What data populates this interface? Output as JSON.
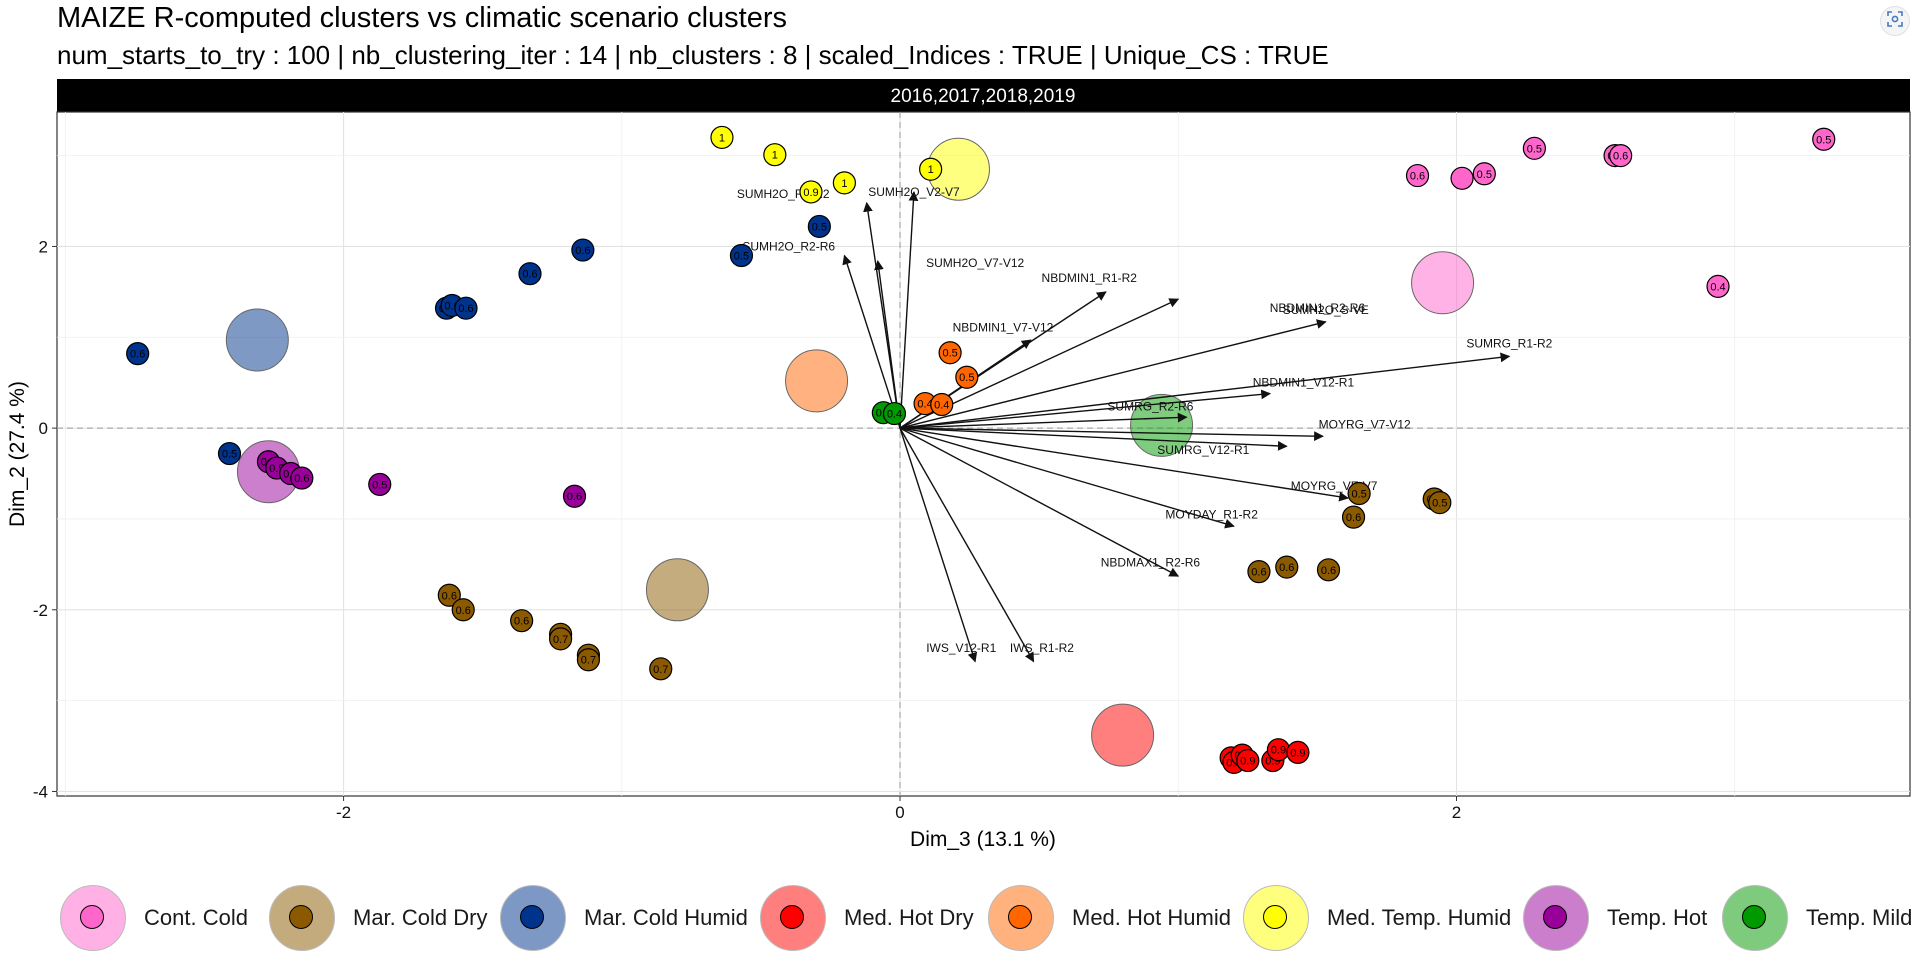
{
  "page": {
    "title": "MAIZE R-computed clusters vs climatic scenario clusters",
    "subtitle": "num_starts_to_try : 100 | nb_clustering_iter : 14 | nb_clusters : 8 | scaled_Indices : TRUE | Unique_CS : TRUE",
    "corner_icon": "screenshot-capture-icon"
  },
  "chart_data": {
    "type": "scatter",
    "facet_label": "2016,2017,2018,2019",
    "xlabel": "Dim_3 (13.1 %)",
    "ylabel": "Dim_2 (27.4 %)",
    "xlim": [
      -3.03,
      3.63
    ],
    "ylim": [
      -4.05,
      3.48
    ],
    "x_ticks": [
      -2,
      0,
      2
    ],
    "y_ticks": [
      -4,
      -2,
      0,
      2
    ],
    "grid": true,
    "legend_position": "bottom",
    "clusters": [
      {
        "name": "Cont. Cold",
        "color": "#ff66cc",
        "centroid": [
          1.95,
          1.6
        ]
      },
      {
        "name": "Mar. Cold Dry",
        "color": "#8b5a00",
        "centroid": [
          -0.8,
          -1.78
        ]
      },
      {
        "name": "Mar. Cold Humid",
        "color": "#00338c",
        "centroid": [
          -2.31,
          0.97
        ]
      },
      {
        "name": "Med. Hot Dry",
        "color": "#ff0000",
        "centroid": [
          0.8,
          -3.38
        ]
      },
      {
        "name": "Med. Hot Humid",
        "color": "#ff6600",
        "centroid": [
          -0.3,
          0.52
        ]
      },
      {
        "name": "Med. Temp. Humid",
        "color": "#ffff00",
        "centroid": [
          0.21,
          2.85
        ]
      },
      {
        "name": "Temp. Hot",
        "color": "#990099",
        "centroid": [
          -2.27,
          -0.48
        ]
      },
      {
        "name": "Temp. Mild",
        "color": "#009900",
        "centroid": [
          0.94,
          0.03
        ]
      }
    ],
    "points": [
      {
        "cluster": 0,
        "x": 1.86,
        "y": 2.78,
        "label": "0.6"
      },
      {
        "cluster": 0,
        "x": 2.02,
        "y": 2.75,
        "label": ""
      },
      {
        "cluster": 0,
        "x": 2.1,
        "y": 2.8,
        "label": "0.5"
      },
      {
        "cluster": 0,
        "x": 2.28,
        "y": 3.08,
        "label": "0.5"
      },
      {
        "cluster": 0,
        "x": 2.57,
        "y": 3.0,
        "label": "0.6"
      },
      {
        "cluster": 0,
        "x": 2.59,
        "y": 3.0,
        "label": "0.6"
      },
      {
        "cluster": 0,
        "x": 3.32,
        "y": 3.18,
        "label": "0.5"
      },
      {
        "cluster": 0,
        "x": 2.94,
        "y": 1.56,
        "label": "0.4"
      },
      {
        "cluster": 1,
        "x": -1.62,
        "y": -1.84,
        "label": "0.6"
      },
      {
        "cluster": 1,
        "x": -1.57,
        "y": -2.0,
        "label": "0.6"
      },
      {
        "cluster": 1,
        "x": -1.36,
        "y": -2.12,
        "label": "0.6"
      },
      {
        "cluster": 1,
        "x": -1.22,
        "y": -2.27,
        "label": "0.7"
      },
      {
        "cluster": 1,
        "x": -1.22,
        "y": -2.32,
        "label": "0.7"
      },
      {
        "cluster": 1,
        "x": -1.12,
        "y": -2.5,
        "label": "0.7"
      },
      {
        "cluster": 1,
        "x": -1.12,
        "y": -2.55,
        "label": "0.7"
      },
      {
        "cluster": 1,
        "x": -0.86,
        "y": -2.65,
        "label": "0.7"
      },
      {
        "cluster": 1,
        "x": 1.65,
        "y": -0.72,
        "label": "0.5"
      },
      {
        "cluster": 1,
        "x": 1.63,
        "y": -0.98,
        "label": "0.6"
      },
      {
        "cluster": 1,
        "x": 1.92,
        "y": -0.78,
        "label": "0.5"
      },
      {
        "cluster": 1,
        "x": 1.94,
        "y": -0.82,
        "label": "0.5"
      },
      {
        "cluster": 1,
        "x": 1.29,
        "y": -1.58,
        "label": "0.6"
      },
      {
        "cluster": 1,
        "x": 1.39,
        "y": -1.53,
        "label": "0.6"
      },
      {
        "cluster": 1,
        "x": 1.54,
        "y": -1.56,
        "label": "0.6"
      },
      {
        "cluster": 2,
        "x": -2.74,
        "y": 0.82,
        "label": "0.6"
      },
      {
        "cluster": 2,
        "x": -1.63,
        "y": 1.32,
        "label": "0.6"
      },
      {
        "cluster": 2,
        "x": -1.61,
        "y": 1.35,
        "label": "0.6"
      },
      {
        "cluster": 2,
        "x": -1.56,
        "y": 1.32,
        "label": "0.6"
      },
      {
        "cluster": 2,
        "x": -1.33,
        "y": 1.7,
        "label": "0.6"
      },
      {
        "cluster": 2,
        "x": -1.14,
        "y": 1.96,
        "label": "0.6"
      },
      {
        "cluster": 2,
        "x": -0.57,
        "y": 1.9,
        "label": "0.5"
      },
      {
        "cluster": 2,
        "x": -0.29,
        "y": 2.22,
        "label": "0.5"
      },
      {
        "cluster": 2,
        "x": -2.41,
        "y": -0.28,
        "label": "0.5"
      },
      {
        "cluster": 3,
        "x": 1.19,
        "y": -3.63,
        "label": "0.9"
      },
      {
        "cluster": 3,
        "x": 1.2,
        "y": -3.68,
        "label": "0.9"
      },
      {
        "cluster": 3,
        "x": 1.23,
        "y": -3.6,
        "label": "0.9"
      },
      {
        "cluster": 3,
        "x": 1.25,
        "y": -3.66,
        "label": "0.9"
      },
      {
        "cluster": 3,
        "x": 1.34,
        "y": -3.66,
        "label": "0.9"
      },
      {
        "cluster": 3,
        "x": 1.36,
        "y": -3.54,
        "label": "0.9"
      },
      {
        "cluster": 3,
        "x": 1.43,
        "y": -3.57,
        "label": "0.9"
      },
      {
        "cluster": 4,
        "x": 0.18,
        "y": 0.83,
        "label": "0.5"
      },
      {
        "cluster": 4,
        "x": 0.24,
        "y": 0.56,
        "label": "0.5"
      },
      {
        "cluster": 4,
        "x": 0.09,
        "y": 0.27,
        "label": "0.4"
      },
      {
        "cluster": 4,
        "x": 0.15,
        "y": 0.26,
        "label": "0.4"
      },
      {
        "cluster": 5,
        "x": -0.64,
        "y": 3.2,
        "label": "1"
      },
      {
        "cluster": 5,
        "x": -0.45,
        "y": 3.01,
        "label": "1"
      },
      {
        "cluster": 5,
        "x": -0.32,
        "y": 2.6,
        "label": "0.9"
      },
      {
        "cluster": 5,
        "x": -0.2,
        "y": 2.7,
        "label": "1"
      },
      {
        "cluster": 5,
        "x": 0.11,
        "y": 2.85,
        "label": "1"
      },
      {
        "cluster": 6,
        "x": -2.27,
        "y": -0.37,
        "label": "0.5"
      },
      {
        "cluster": 6,
        "x": -2.24,
        "y": -0.44,
        "label": "0.5"
      },
      {
        "cluster": 6,
        "x": -2.19,
        "y": -0.5,
        "label": "0.5"
      },
      {
        "cluster": 6,
        "x": -2.15,
        "y": -0.55,
        "label": "0.6"
      },
      {
        "cluster": 6,
        "x": -1.87,
        "y": -0.62,
        "label": "0.5"
      },
      {
        "cluster": 6,
        "x": -1.17,
        "y": -0.75,
        "label": "0.6"
      },
      {
        "cluster": 7,
        "x": -0.06,
        "y": 0.17,
        "label": "0.4"
      },
      {
        "cluster": 7,
        "x": -0.02,
        "y": 0.16,
        "label": "0.4"
      }
    ],
    "arrows": [
      {
        "name": "SUMH2O_V2-V7",
        "x": 0.05,
        "y": 2.6,
        "label_dx": 0,
        "label_dy": 0
      },
      {
        "name": "SUMH2O_R1-R2",
        "x": -0.12,
        "y": 2.48,
        "label_dx": -0.3,
        "label_dy": 0.1
      },
      {
        "name": "SUMH2O_R2-R6",
        "x": -0.2,
        "y": 1.9,
        "label_dx": -0.2,
        "label_dy": 0.1
      },
      {
        "name": "SUMH2O_V7-V12",
        "x": -0.08,
        "y": 1.84,
        "label_dx": 0.35,
        "label_dy": -0.02
      },
      {
        "name": "NBDMIN1_R1-R2",
        "x": 0.74,
        "y": 1.5,
        "label_dx": -0.06,
        "label_dy": 0.15
      },
      {
        "name": "NBDMIN1_R2-R6",
        "x": 1.0,
        "y": 1.42,
        "label_dx": 0.5,
        "label_dy": -0.1
      },
      {
        "name": "SUMH2O_S-VE",
        "x": 1.53,
        "y": 1.17,
        "label_dx": 0.0,
        "label_dy": 0.13
      },
      {
        "name": "NBDMIN1_V7-V12",
        "x": 0.47,
        "y": 0.97,
        "label_dx": -0.1,
        "label_dy": 0.14
      },
      {
        "name": "SUMRG_R1-R2",
        "x": 2.19,
        "y": 0.79,
        "label_dx": 0.0,
        "label_dy": 0.14
      },
      {
        "name": "NBDMIN1_V12-R1",
        "x": 1.33,
        "y": 0.38,
        "label_dx": 0.12,
        "label_dy": 0.12
      },
      {
        "name": "SUMRG_R2-R6",
        "x": 1.03,
        "y": 0.12,
        "label_dx": -0.13,
        "label_dy": 0.12
      },
      {
        "name": "MOYRG_V7-V12",
        "x": 1.52,
        "y": -0.09,
        "label_dx": 0.15,
        "label_dy": 0.13
      },
      {
        "name": "SUMRG_V12-R1",
        "x": 1.39,
        "y": -0.2,
        "label_dx": -0.3,
        "label_dy": -0.04
      },
      {
        "name": "MOYRG_VE-V7",
        "x": 1.61,
        "y": -0.77,
        "label_dx": -0.05,
        "label_dy": 0.13
      },
      {
        "name": "MOYDAY_R1-R2",
        "x": 1.2,
        "y": -1.08,
        "label_dx": -0.08,
        "label_dy": 0.13
      },
      {
        "name": "NBDMAX1_R2-R6",
        "x": 1.0,
        "y": -1.63,
        "label_dx": -0.1,
        "label_dy": 0.15
      },
      {
        "name": "IWS_V12-R1",
        "x": 0.27,
        "y": -2.57,
        "label_dx": -0.05,
        "label_dy": 0.15
      },
      {
        "name": "IWS_R1-R2",
        "x": 0.48,
        "y": -2.57,
        "label_dx": 0.03,
        "label_dy": 0.15
      }
    ]
  }
}
